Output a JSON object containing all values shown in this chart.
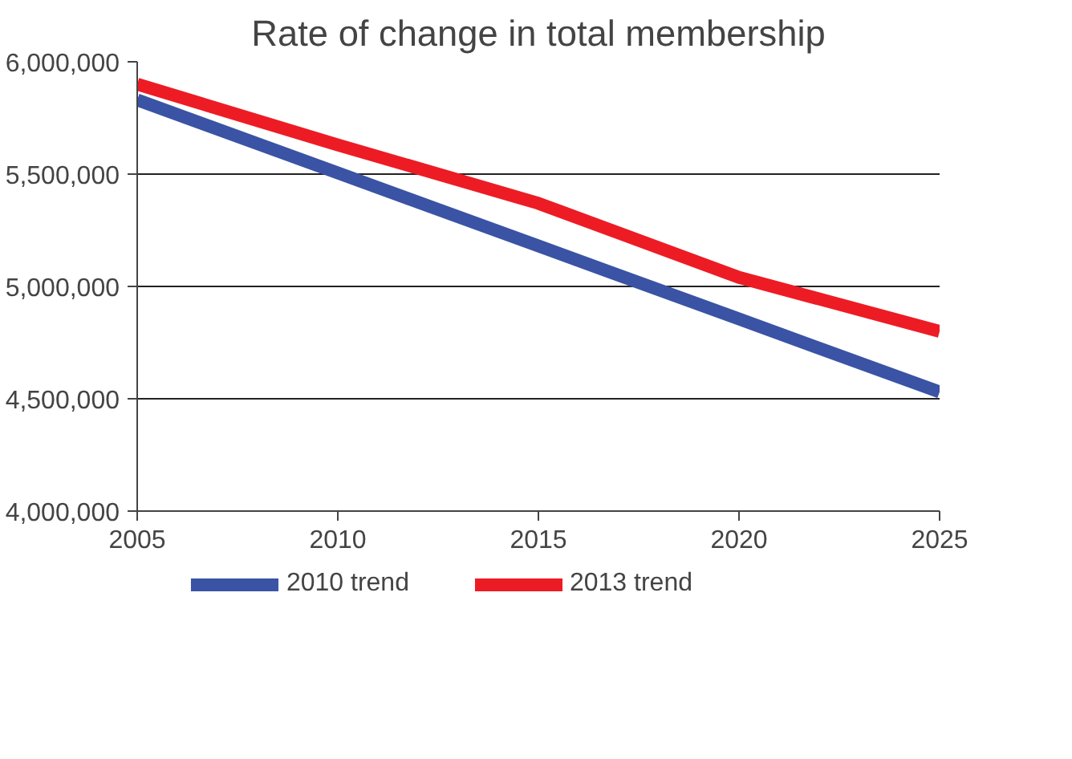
{
  "chart_data": {
    "type": "line",
    "title": "Rate of change in total membership",
    "x": [
      2005,
      2010,
      2015,
      2020,
      2025
    ],
    "series": [
      {
        "name": "2010 trend",
        "color": "#3a53a4",
        "values": [
          5830000,
          5505000,
          5180000,
          4855000,
          4530000
        ]
      },
      {
        "name": "2013 trend",
        "color": "#ed1c24",
        "values": [
          5900000,
          5630000,
          5370000,
          5040000,
          4800000
        ]
      }
    ],
    "xlim": [
      2005,
      2025
    ],
    "xticks": [
      2005,
      2010,
      2015,
      2020,
      2025
    ],
    "ylim": [
      4000000,
      6000000
    ],
    "yticks": [
      {
        "value": 4000000,
        "label": "4,000,000"
      },
      {
        "value": 4500000,
        "label": "4,500,000"
      },
      {
        "value": 5000000,
        "label": "5,000,000"
      },
      {
        "value": 5500000,
        "label": "5,500,000"
      },
      {
        "value": 6000000,
        "label": "6,000,000"
      }
    ],
    "grid": "y",
    "legend": "bottom",
    "marker": "none",
    "line_style": "solid"
  }
}
